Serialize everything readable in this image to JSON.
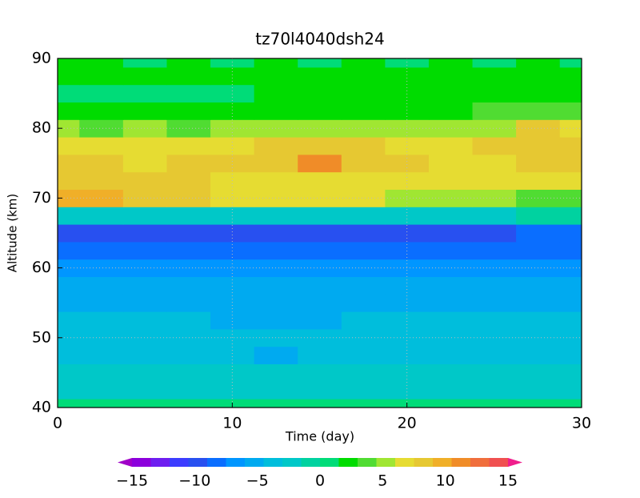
{
  "chart_data": {
    "type": "contour",
    "title": "tz70l4040dsh24",
    "xlabel": "Time (day)",
    "ylabel": "Altitude (km)",
    "xlim": [
      0,
      30
    ],
    "ylim": [
      40,
      90
    ],
    "xticks": [
      0,
      10,
      20,
      30
    ],
    "yticks": [
      40,
      50,
      60,
      70,
      80,
      90
    ],
    "grid": true,
    "x": [
      0,
      2.5,
      5,
      7.5,
      10,
      12.5,
      15,
      17.5,
      20,
      22.5,
      25,
      27.5,
      30
    ],
    "y": [
      40,
      42.5,
      45,
      47.5,
      50,
      52.5,
      55,
      57.5,
      60,
      62.5,
      65,
      67.5,
      70,
      72.5,
      75,
      77.5,
      80,
      82.5,
      85,
      87.5,
      90
    ],
    "z": [
      [
        0.5,
        0.5,
        0.5,
        0.5,
        0.5,
        0.5,
        0.5,
        0.5,
        0.5,
        0.5,
        0.5,
        0.5,
        0.5
      ],
      [
        -2,
        -2,
        -2,
        -2,
        -2,
        -2,
        -2,
        -2,
        -2,
        -2,
        -2,
        -2,
        -2
      ],
      [
        -2.5,
        -2.5,
        -2.5,
        -2.5,
        -3,
        -3,
        -3,
        -3,
        -3,
        -2.5,
        -2.5,
        -2.5,
        -2.5
      ],
      [
        -3.5,
        -3.5,
        -3.5,
        -3.5,
        -3.5,
        -4.6,
        -3.5,
        -3.5,
        -3.5,
        -3.5,
        -3.5,
        -3.5,
        -3.5
      ],
      [
        -3.5,
        -3.5,
        -3.5,
        -3.5,
        -4,
        -4,
        -3.5,
        -3.5,
        -3.5,
        -3.5,
        -3.5,
        -3.5,
        -3.5
      ],
      [
        -4,
        -4,
        -4,
        -4,
        -4.6,
        -4.6,
        -4.6,
        -4,
        -4,
        -4,
        -4,
        -4,
        -4
      ],
      [
        -4.6,
        -4.6,
        -4.6,
        -4.6,
        -4.6,
        -4.6,
        -4.6,
        -4.6,
        -4.6,
        -4.6,
        -4.6,
        -4.6,
        -4.6
      ],
      [
        -4.6,
        -4.6,
        -5,
        -5,
        -4.6,
        -4.6,
        -5,
        -5,
        -4.6,
        -4.6,
        -4.6,
        -4.6,
        -4.6
      ],
      [
        -6.2,
        -6.2,
        -6.2,
        -6.2,
        -6.2,
        -6.2,
        -6.2,
        -6.2,
        -6.2,
        -6.2,
        -6.2,
        -6.2,
        -6.2
      ],
      [
        -7.6,
        -7.6,
        -7.6,
        -7.6,
        -7.6,
        -7.6,
        -7.6,
        -7.6,
        -7.6,
        -7.6,
        -7.6,
        -7.6,
        -7.6
      ],
      [
        -9.1,
        -9.1,
        -9.1,
        -9.1,
        -9.1,
        -9.1,
        -9.1,
        -9.1,
        -9.1,
        -9.1,
        -9.1,
        -7.6,
        -7.6
      ],
      [
        -2,
        -2,
        -2,
        -2,
        -2,
        -2,
        -2,
        -2,
        -2,
        -2,
        -2,
        -0.5,
        -0.5
      ],
      [
        9.5,
        9,
        8.5,
        8,
        7,
        6.5,
        6.5,
        6,
        5.5,
        5,
        4.5,
        4,
        4
      ],
      [
        8.5,
        8,
        8,
        7.5,
        7,
        7,
        7,
        7,
        6.5,
        6.5,
        6.5,
        6.5,
        7
      ],
      [
        7.5,
        7.5,
        7,
        7.5,
        8,
        8.5,
        10.5,
        8.5,
        8,
        7,
        7,
        7.5,
        7.5
      ],
      [
        6.5,
        7,
        7,
        6.5,
        7,
        8,
        8,
        7.5,
        7,
        7,
        7.5,
        8,
        8
      ],
      [
        4.5,
        4,
        4.5,
        4,
        5,
        5,
        5,
        4.5,
        4.5,
        5,
        5.5,
        7.5,
        6
      ],
      [
        2,
        1.5,
        2,
        1.5,
        1.5,
        2,
        2.5,
        2,
        2,
        2.5,
        3,
        3,
        3.5
      ],
      [
        0.5,
        0.5,
        0.5,
        0.5,
        1,
        1.5,
        1.5,
        2,
        2,
        1.5,
        2,
        2.5,
        2
      ],
      [
        1.5,
        1.5,
        2,
        1.5,
        2,
        1.5,
        2,
        2,
        2.5,
        2,
        1.5,
        2,
        1.5
      ],
      [
        1.5,
        1.5,
        1,
        1.5,
        1,
        1.5,
        1,
        1.5,
        1,
        1.5,
        1,
        1.5,
        1
      ]
    ],
    "colorbar": {
      "levels": [
        -15,
        -13.5,
        -12,
        -10.5,
        -9,
        -7.5,
        -6,
        -4.5,
        -3,
        -1.5,
        0,
        1.5,
        3,
        4.5,
        6,
        7.5,
        9,
        10.5,
        12,
        13.5,
        15
      ],
      "colors": [
        "#a000c8",
        "#8c00dc",
        "#6e1ef0",
        "#3c3cff",
        "#2850f0",
        "#0a6eff",
        "#0096ff",
        "#00aaf0",
        "#00bedc",
        "#00c8c8",
        "#00d2a0",
        "#00dc78",
        "#00dc00",
        "#50dc32",
        "#a0e632",
        "#e6dc32",
        "#e6c832",
        "#f0af28",
        "#f08c28",
        "#f06e3c",
        "#f05050",
        "#f03264",
        "#f01e8c"
      ],
      "ticks": [
        {
          "value": -15,
          "label": "−15"
        },
        {
          "value": -10,
          "label": "−10"
        },
        {
          "value": -5,
          "label": "−5"
        },
        0,
        5,
        10,
        15
      ]
    }
  }
}
